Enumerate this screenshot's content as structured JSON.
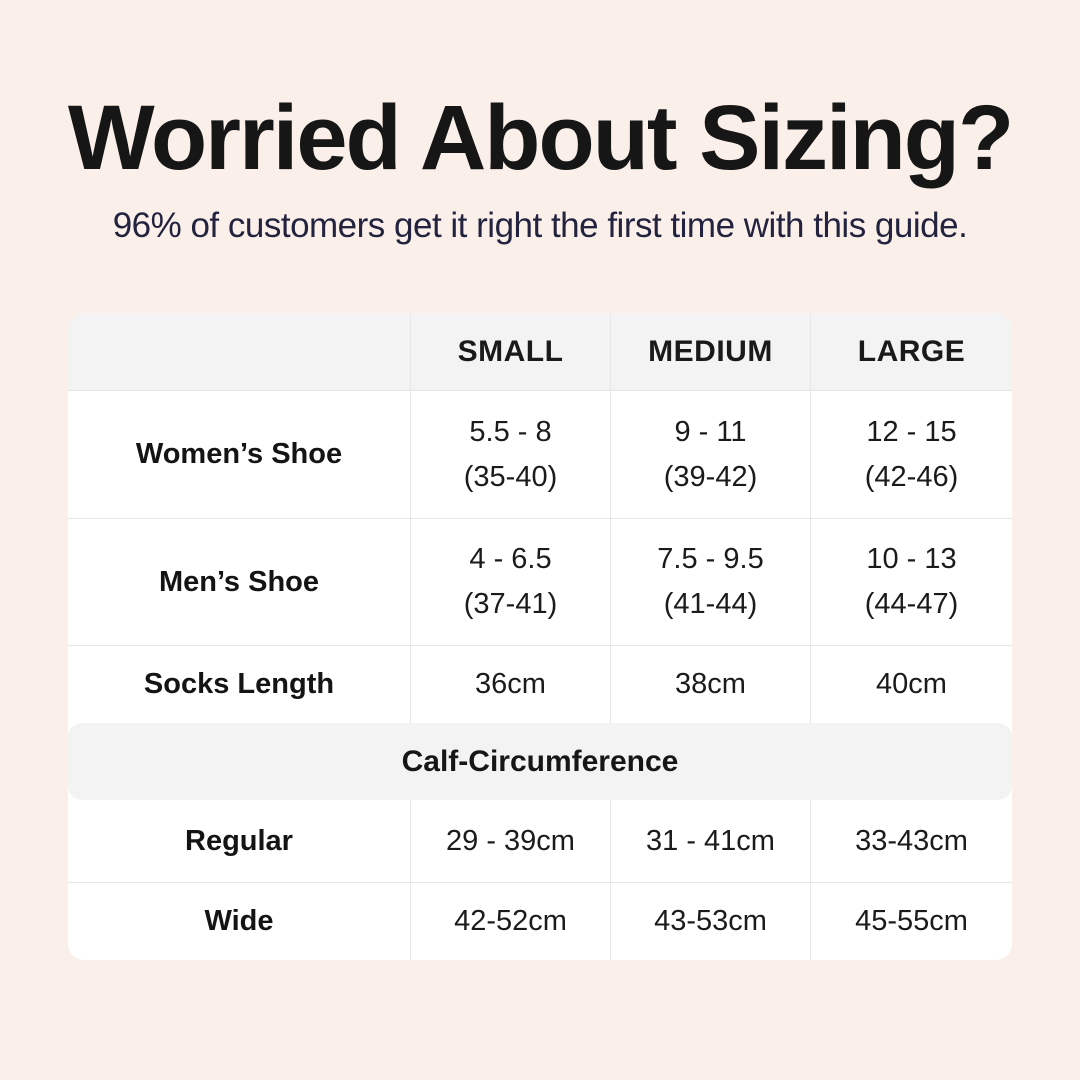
{
  "colors": {
    "background": "#FBF0E9",
    "card": "#FFFFFF",
    "band": "#F3F3F3",
    "border": "#E6E6E6",
    "title_text": "#161616",
    "subtitle_text": "#23233F"
  },
  "chart_data": {
    "type": "table",
    "title": "Worried About Sizing?",
    "subtitle": "96% of customers get it right the first time with this guide.",
    "columns": [
      "",
      "SMALL",
      "MEDIUM",
      "LARGE"
    ],
    "rows": [
      {
        "label": "Women’s Shoe",
        "cells": [
          "5.5 - 8\n(35-40)",
          "9 - 11\n(39-42)",
          "12 - 15\n(42-46)"
        ]
      },
      {
        "label": "Men’s Shoe",
        "cells": [
          "4 - 6.5\n(37-41)",
          "7.5 - 9.5\n(41-44)",
          "10 - 13\n(44-47)"
        ]
      },
      {
        "label": "Socks Length",
        "cells": [
          "36cm",
          "38cm",
          "40cm"
        ]
      }
    ],
    "section_header": "Calf-Circumference",
    "section_rows": [
      {
        "label": "Regular",
        "cells": [
          "29 - 39cm",
          "31 - 41cm",
          "33-43cm"
        ]
      },
      {
        "label": "Wide",
        "cells": [
          "42-52cm",
          "43-53cm",
          "45-55cm"
        ]
      }
    ]
  }
}
